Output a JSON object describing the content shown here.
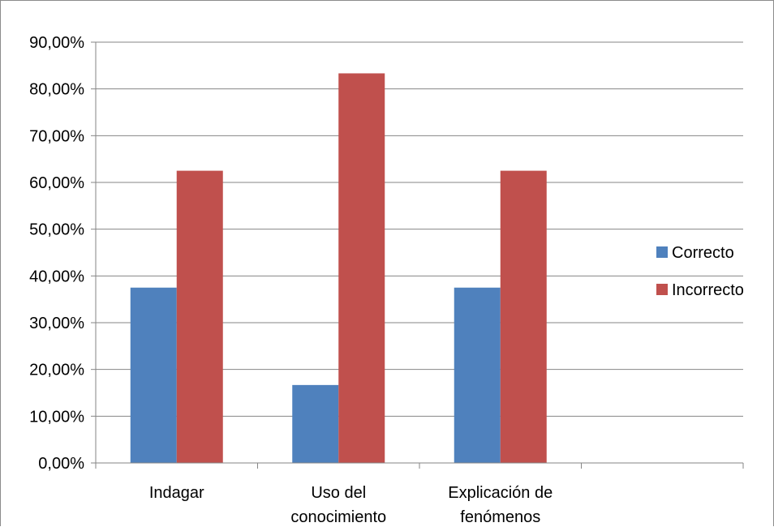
{
  "chart_data": {
    "type": "bar",
    "categories": [
      [
        "Indagar"
      ],
      [
        "Uso del",
        "conocimiento"
      ],
      [
        "Explicación de",
        "fenómenos"
      ],
      [
        ""
      ]
    ],
    "series": [
      {
        "name": "Correcto",
        "values": [
          37.5,
          16.67,
          37.5,
          null
        ],
        "color": "#4f81bd"
      },
      {
        "name": "Incorrecto",
        "values": [
          62.5,
          83.33,
          62.5,
          null
        ],
        "color": "#c0504d"
      }
    ],
    "ylim": [
      0,
      90
    ],
    "ytick_step": 10,
    "ytick_labels": [
      "0,00%",
      "10,00%",
      "20,00%",
      "30,00%",
      "40,00%",
      "50,00%",
      "60,00%",
      "70,00%",
      "80,00%",
      "90,00%"
    ],
    "grid": true,
    "legend_position": "right",
    "title": "",
    "xlabel": "",
    "ylabel": ""
  }
}
